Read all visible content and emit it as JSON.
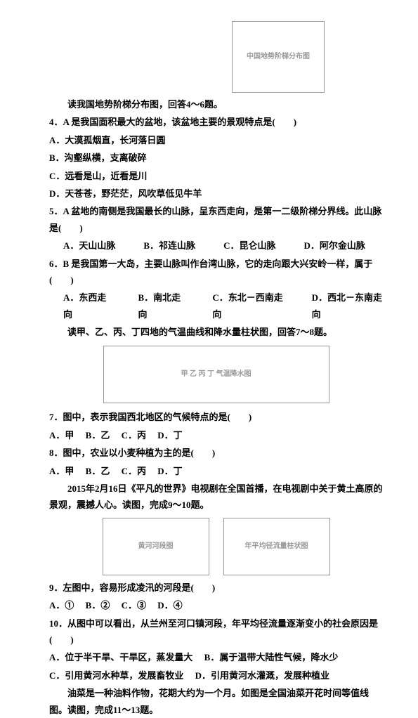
{
  "intro1": "读我国地势阶梯分布图，回答4～6题。",
  "q4": {
    "stem": "4．A 是我国面积最大的盆地，该盆地主要的景观特点是(　　)",
    "A": "A．大漠孤烟直，长河落日圆",
    "B": "B．沟壑纵横，支离破碎",
    "C": "C．远看是山，近看是川",
    "D": "D．天苍苍，野茫茫，风吹草低见牛羊"
  },
  "q5": {
    "stem": "5．A 盆地的南侧是我国最长的山脉，呈东西走向，是第一二级阶梯分界线。此山脉是(　　)",
    "A": "A．天山山脉",
    "B": "B．祁连山脉",
    "C": "C．昆仑山脉",
    "D": "D．阿尔金山脉"
  },
  "q6": {
    "stem": "6．B 是我国第一大岛，主要山脉叫作台湾山脉，它的走向跟大兴安岭一样，属于(　　)",
    "A": "A．东西走向",
    "B": "B．南北走向",
    "C": "C．东北－西南走向",
    "D": "D．西北－东南走向"
  },
  "intro2": "读甲、乙、丙、丁四地的气温曲线和降水量柱状图，回答7～8题。",
  "q7": {
    "stem": "7．图中，表示我国西北地区的气候特点的是(　　)",
    "A": "A．甲",
    "B": "B．乙",
    "C": "C．丙",
    "D": "D．丁"
  },
  "q8": {
    "stem": "8．图中，农业以小麦种植为主的是(　　)",
    "A": "A．甲",
    "B": "B．乙",
    "C": "C．丙",
    "D": "D．丁"
  },
  "intro3": "2015年2月16日《平凡的世界》电视剧在全国首播，在电视剧中关于黄土高原的景观，震撼人心。读图，完成9～10题。",
  "q9": {
    "stem": "9．左图中，容易形成凌汛的河段是(　　)",
    "A": "A．①",
    "B": "B．②",
    "C": "C．③",
    "D": "D．④"
  },
  "q10": {
    "stem": "10．从图中可以看出，从兰州至河口镇河段，年平均径流量逐渐变小的社会原因是(　　)",
    "A": "A．位于半干旱、干旱区，蒸发量大",
    "B": "B．属于温带大陆性气候，降水少",
    "C": "C．引用黄河水种草，发展畜牧业",
    "D": "D．引用黄河水灌溉，发展种植业"
  },
  "intro4": "油菜是一种油料作物，花期大约为一个月。如图是全国油菜开花时间等值线图。读图，完成11～13题。",
  "map_label": "中国地势阶梯分布图",
  "charts_label": "甲 乙 丙 丁 气温降水图",
  "fig_left": "黄河河段图",
  "fig_right": "年平均径流量柱状图"
}
